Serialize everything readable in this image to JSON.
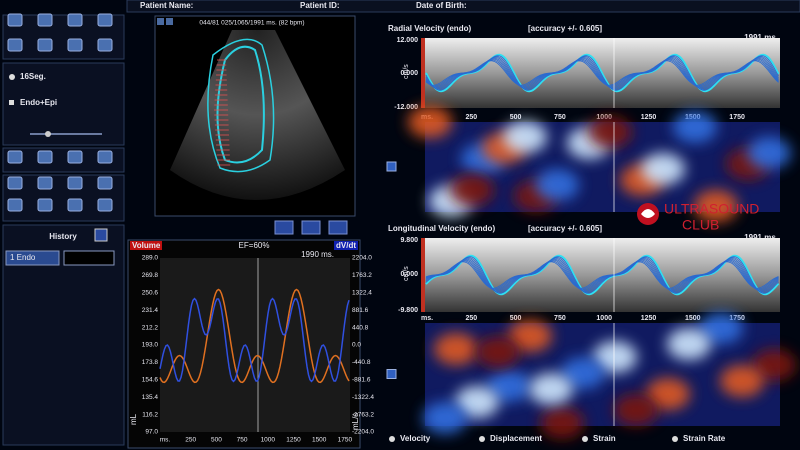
{
  "header": {
    "patient_name": "Patient Name:",
    "patient_id": "Patient ID:",
    "date_of_birth": "Date of Birth:"
  },
  "left_panel": {
    "segments": "16Seg.",
    "layers": "Endo+Epi",
    "history_title": "History",
    "history_item": "1 Endo"
  },
  "echo": {
    "info": "044/81  025/1065/1991 ms.  (82 bpm)"
  },
  "volume_chart": {
    "left_label": "Volume",
    "ef": "EF=60%",
    "right_label": "dV/dt",
    "duration": "1990 ms.",
    "left_ticks": [
      "289.0",
      "269.8",
      "250.6",
      "231.4",
      "212.2",
      "193.0",
      "173.8",
      "154.6",
      "135.4",
      "116.2",
      "97.0"
    ],
    "right_ticks": [
      "2204.0",
      "1763.2",
      "1322.4",
      "881.6",
      "440.8",
      "0.0",
      "-440.8",
      "-881.6",
      "-1322.4",
      "-1763.2",
      "-2204.0"
    ],
    "x_ticks": [
      "ms.",
      "250",
      "500",
      "750",
      "1000",
      "1250",
      "1500",
      "1750"
    ],
    "left_unit": "mL",
    "right_unit": "mL/s"
  },
  "radial": {
    "title": "Radial Velocity (endo)",
    "accuracy": "[accuracy +/- 0.605]",
    "duration": "1991 ms.",
    "y_ticks": [
      "12.000",
      "0.000",
      "-12.000"
    ],
    "unit": "cm/s",
    "x_ticks": [
      "ms.",
      "250",
      "500",
      "750",
      "1000",
      "1250",
      "1500",
      "1750"
    ]
  },
  "longitudinal": {
    "title": "Longitudinal Velocity (endo)",
    "accuracy": "[accuracy +/- 0.605]",
    "duration": "1991 ms.",
    "y_ticks": [
      "9.800",
      "0.000",
      "-9.800"
    ],
    "unit": "cm/s",
    "x_ticks": [
      "ms.",
      "250",
      "500",
      "750",
      "1000",
      "1250",
      "1500",
      "1750"
    ]
  },
  "logo": {
    "line1": "ULTRASOUND",
    "line2": "CLUB"
  },
  "modes": [
    "Velocity",
    "Displacement",
    "Strain",
    "Strain Rate"
  ]
}
